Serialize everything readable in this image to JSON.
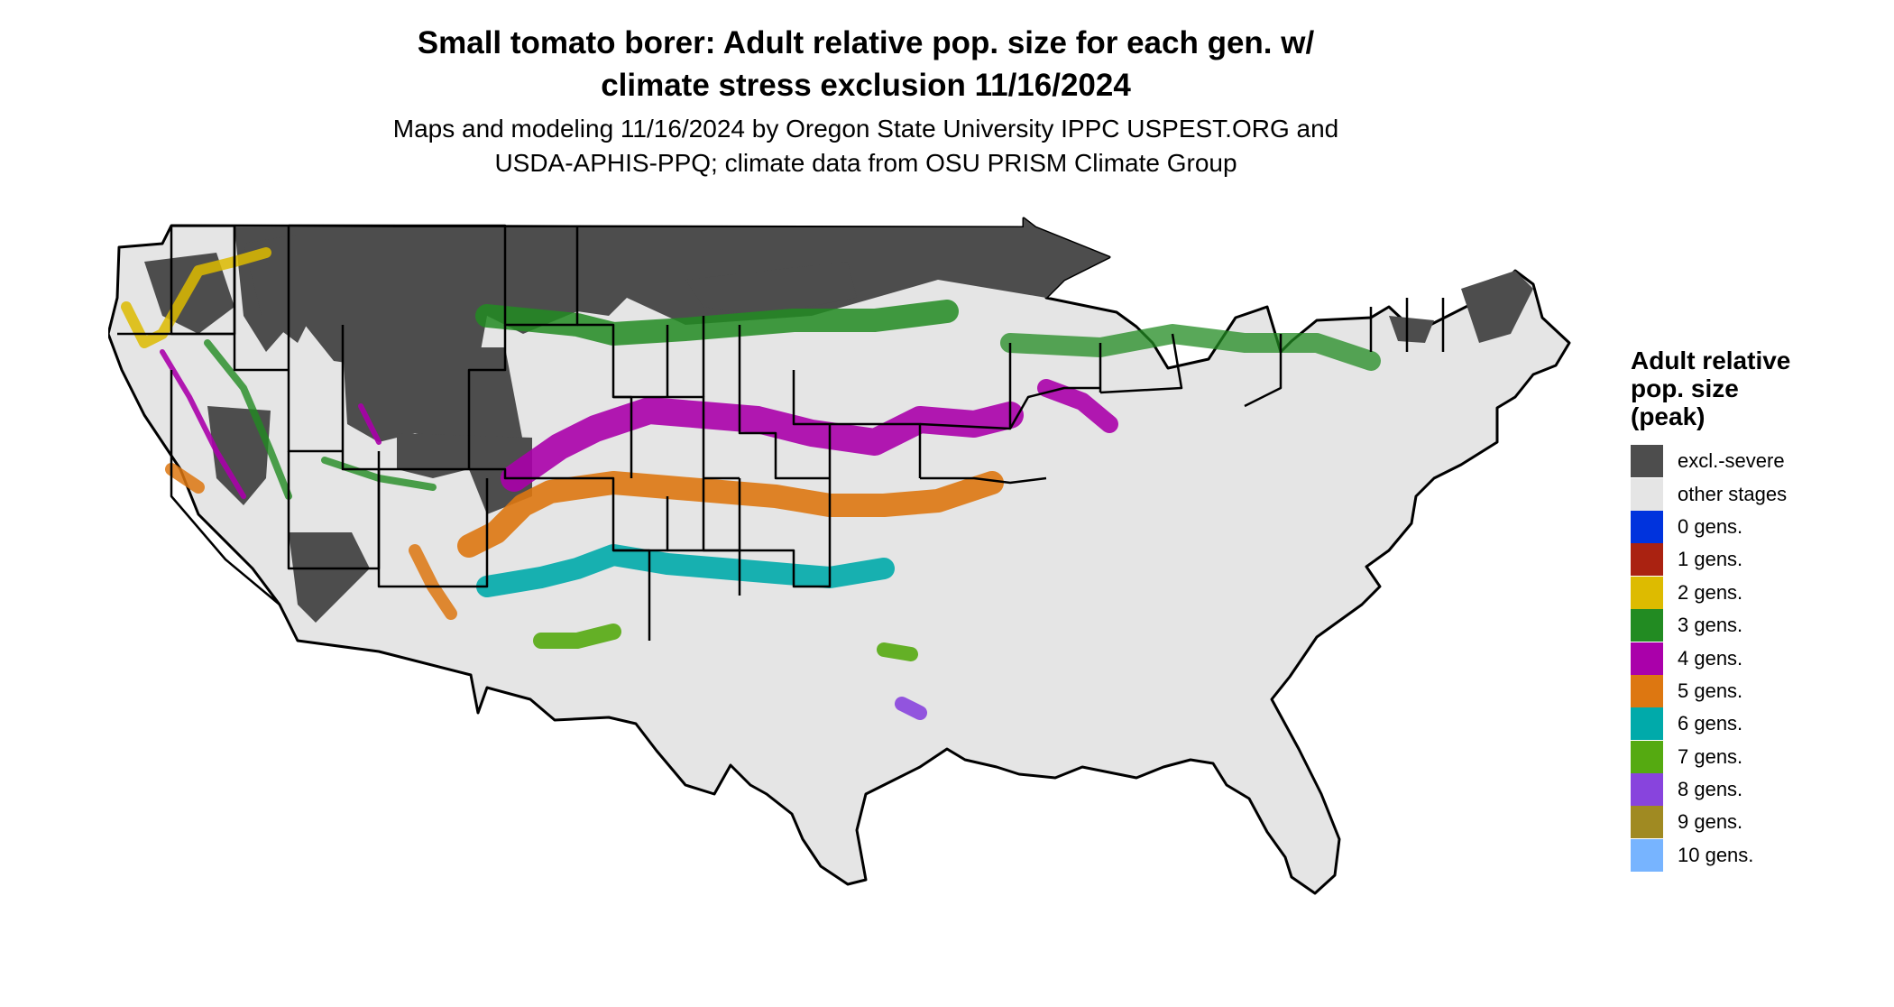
{
  "title": {
    "line1": "Small tomato borer: Adult relative pop. size for each gen. w/",
    "line2": "climate stress exclusion 11/16/2024"
  },
  "subtitle": {
    "line1": "Maps and modeling 11/16/2024 by Oregon State University IPPC USPEST.ORG and",
    "line2": "USDA-APHIS-PPQ; climate data from OSU PRISM Climate Group"
  },
  "legend": {
    "title_lines": [
      "Adult relative",
      "pop. size",
      "(peak)"
    ],
    "items": [
      {
        "label": "excl.-severe",
        "color": "#4d4d4d"
      },
      {
        "label": "other stages",
        "color": "#e5e5e5"
      },
      {
        "label": "0 gens.",
        "color": "#0033dd"
      },
      {
        "label": "1 gens.",
        "color": "#aa2211"
      },
      {
        "label": "2 gens.",
        "color": "#ddbb00"
      },
      {
        "label": "3 gens.",
        "color": "#228b22"
      },
      {
        "label": "4 gens.",
        "color": "#aa00aa"
      },
      {
        "label": "5 gens.",
        "color": "#dd7711"
      },
      {
        "label": "6 gens.",
        "color": "#00aaaa"
      },
      {
        "label": "7 gens.",
        "color": "#55aa11"
      },
      {
        "label": "8 gens.",
        "color": "#8844dd"
      },
      {
        "label": "9 gens.",
        "color": "#a08a22"
      },
      {
        "label": "10 gens.",
        "color": "#77b4ff"
      }
    ]
  }
}
